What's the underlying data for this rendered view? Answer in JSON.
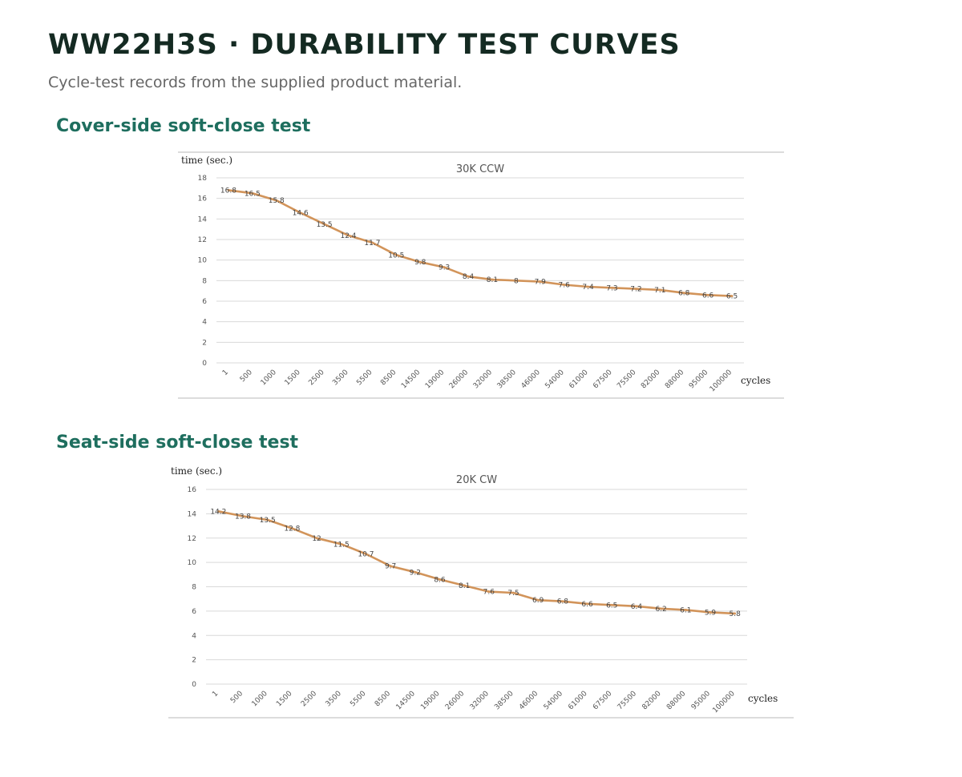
{
  "page": {
    "title": "WW22H3S · DURABILITY TEST CURVES",
    "subtitle": "Cycle-test records from the supplied product material."
  },
  "sections": [
    {
      "heading": "Cover-side soft-close test"
    },
    {
      "heading": "Seat-side soft-close test"
    }
  ],
  "chart_data": [
    {
      "type": "line",
      "title": "30K CCW",
      "xlabel": "cycles",
      "ylabel": "time (sec.)",
      "ylim": [
        0,
        18
      ],
      "yticks": [
        0,
        2,
        4,
        6,
        8,
        10,
        12,
        14,
        16,
        18
      ],
      "grid": true,
      "categories": [
        "1",
        "500",
        "1000",
        "1500",
        "2500",
        "3500",
        "5500",
        "8500",
        "14500",
        "19000",
        "26000",
        "32000",
        "38500",
        "46000",
        "54000",
        "61000",
        "67500",
        "75500",
        "82000",
        "88000",
        "95000",
        "100000"
      ],
      "series": [
        {
          "values": [
            16.8,
            16.5,
            15.8,
            14.6,
            13.5,
            12.4,
            11.7,
            10.5,
            9.8,
            9.3,
            8.4,
            8.1,
            8,
            7.9,
            7.6,
            7.4,
            7.3,
            7.2,
            7.1,
            6.8,
            6.6,
            6.5
          ],
          "color": "#d2945a"
        }
      ]
    },
    {
      "type": "line",
      "title": "20K CW",
      "xlabel": "cycles",
      "ylabel": "time (sec.)",
      "ylim": [
        0,
        16
      ],
      "yticks": [
        0,
        2,
        4,
        6,
        8,
        10,
        12,
        14,
        16
      ],
      "grid": true,
      "categories": [
        "1",
        "500",
        "1000",
        "1500",
        "2500",
        "3500",
        "5500",
        "8500",
        "14500",
        "19000",
        "26000",
        "32000",
        "38500",
        "46000",
        "54000",
        "61000",
        "67500",
        "75500",
        "82000",
        "88000",
        "95000",
        "100000"
      ],
      "series": [
        {
          "values": [
            14.2,
            13.8,
            13.5,
            12.8,
            12,
            11.5,
            10.7,
            9.7,
            9.2,
            8.6,
            8.1,
            7.6,
            7.5,
            6.9,
            6.8,
            6.6,
            6.5,
            6.4,
            6.2,
            6.1,
            5.9,
            5.8
          ],
          "color": "#d2945a"
        }
      ]
    }
  ]
}
